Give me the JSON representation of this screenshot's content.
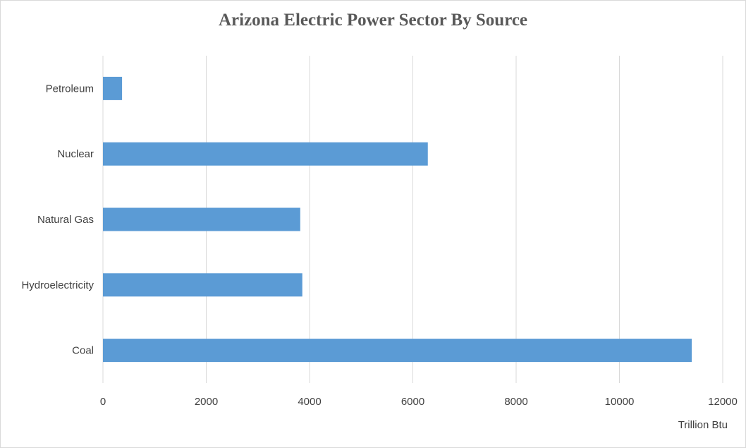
{
  "chart_data": {
    "type": "bar",
    "orientation": "horizontal",
    "title": "Arizona Electric Power Sector By Source",
    "xlabel": "Trillion Btu",
    "ylabel": "",
    "categories": [
      "Coal",
      "Hydroelectricity",
      "Natural Gas",
      "Nuclear",
      "Petroleum"
    ],
    "values": [
      11400,
      3860,
      3820,
      6290,
      370
    ],
    "xlim": [
      0,
      12000
    ],
    "xticks": [
      "0",
      "2000",
      "4000",
      "6000",
      "8000",
      "10000",
      "12000"
    ],
    "grid": "vertical",
    "legend": "none",
    "bar_color": "#5b9bd5"
  }
}
